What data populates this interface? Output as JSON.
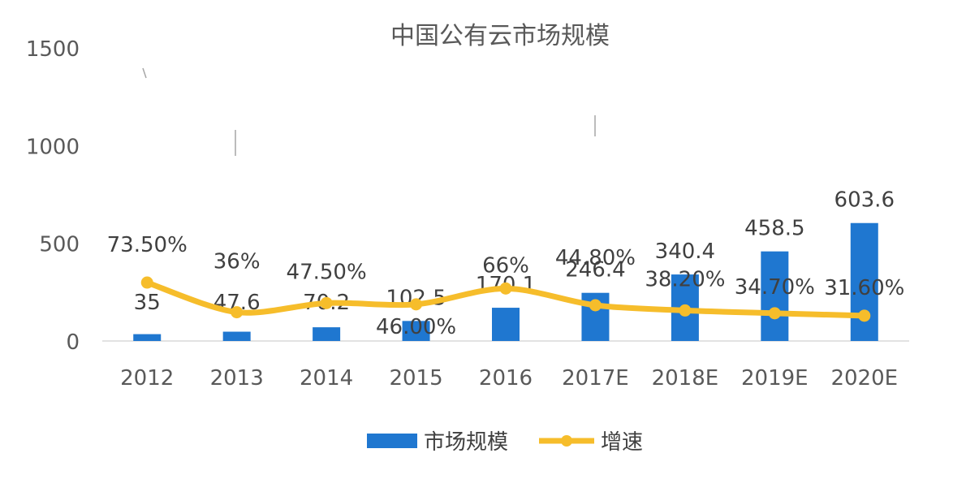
{
  "chart_data": {
    "type": "bar",
    "title": "中国公有云市场规模",
    "categories": [
      "2012",
      "2013",
      "2014",
      "2015",
      "2016",
      "2017E",
      "2018E",
      "2019E",
      "2020E"
    ],
    "y_ticks": [
      "0",
      "500",
      "1000",
      "1500"
    ],
    "ylim": [
      0,
      1500
    ],
    "series": [
      {
        "name": "市场规模",
        "type": "bar",
        "color": "#1f77d0",
        "values": [
          35,
          47.6,
          70.2,
          102.5,
          170.1,
          246.4,
          340.4,
          458.5,
          603.6
        ],
        "labels": [
          "35",
          "47.6",
          "70.2",
          "102.5",
          "170.1",
          "246.4",
          "340.4",
          "458.5",
          "603.6"
        ]
      },
      {
        "name": "增速",
        "type": "line",
        "color": "#f6bd2b",
        "values": [
          73.5,
          36,
          47.5,
          46.0,
          66,
          44.8,
          38.2,
          34.7,
          31.6
        ],
        "labels": [
          "73.50%",
          "36%",
          "47.50%",
          "46.00%",
          "66%",
          "44.80%",
          "38.20%",
          "34.70%",
          "31.60%"
        ]
      }
    ],
    "legend": [
      "市场规模",
      "增速"
    ],
    "legend_position": "bottom",
    "grid": false
  }
}
